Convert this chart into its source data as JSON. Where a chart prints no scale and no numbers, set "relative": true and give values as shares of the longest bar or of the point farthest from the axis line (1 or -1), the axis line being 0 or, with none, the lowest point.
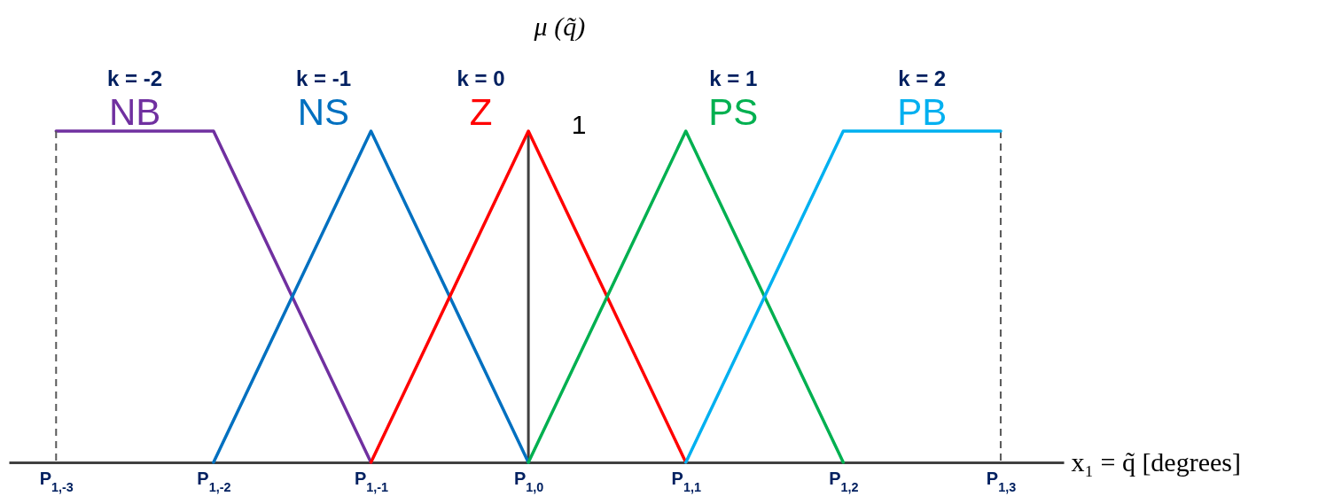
{
  "chart_data": {
    "type": "line",
    "relative": true,
    "xlabel": "x₁ = q̃ [degrees]",
    "ylabel": "μ (q̃)",
    "categories": [
      "P$_{1,-3}$",
      "P$_{1,-2}$",
      "P$_{1,-1}$",
      "P$_{1,0}$",
      "P$_{1,1}$",
      "P$_{1,2}$",
      "P$_{1,3}$"
    ],
    "series": [
      {
        "name": "NB",
        "color": "#7030a0",
        "values": [
          1,
          1,
          0,
          null,
          null,
          null,
          null
        ]
      },
      {
        "name": "NS",
        "color": "#0070c0",
        "values": [
          null,
          0,
          1,
          0,
          null,
          null,
          null
        ]
      },
      {
        "name": "Z",
        "color": "#ff0000",
        "values": [
          null,
          null,
          0,
          1,
          0,
          null,
          null
        ]
      },
      {
        "name": "PS",
        "color": "#00b050",
        "values": [
          null,
          null,
          null,
          0,
          1,
          0,
          null
        ]
      },
      {
        "name": "PB",
        "color": "#00b0f0",
        "values": [
          null,
          null,
          null,
          null,
          0,
          1,
          1
        ]
      }
    ],
    "ref_lines": [
      {
        "axis": "x",
        "value": "P$_{1,-3}$",
        "color": "#595959",
        "line_style": "dashed"
      },
      {
        "axis": "x",
        "value": "P$_{1,0}$",
        "color": "#404040",
        "line_style": "solid"
      },
      {
        "axis": "x",
        "value": "P$_{1,3}$",
        "color": "#595959",
        "line_style": "dashed"
      }
    ],
    "annotations": [
      "k = -2",
      "k = -1",
      "k = 0",
      "k = 1",
      "k = 2",
      {
        "text": "1",
        "x": "P$_{1,0}$",
        "y": 1
      }
    ],
    "legend": false,
    "grid": false,
    "marker": "none",
    "line_style": "solid"
  }
}
